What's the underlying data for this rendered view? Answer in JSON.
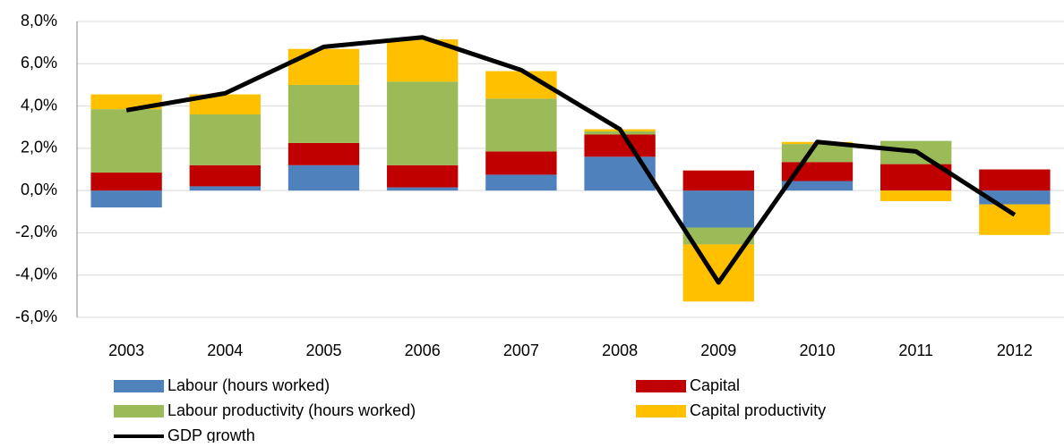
{
  "chart_data": {
    "type": "bar",
    "stacked": true,
    "grid": true,
    "legend": "bottom",
    "categories": [
      "2003",
      "2004",
      "2005",
      "2006",
      "2007",
      "2008",
      "2009",
      "2010",
      "2011",
      "2012"
    ],
    "series": [
      {
        "name": "Labour (hours worked)",
        "color": "#4f81bd",
        "values": [
          -0.8,
          0.2,
          1.2,
          0.15,
          0.75,
          1.6,
          -1.75,
          0.45,
          0,
          -0.65
        ]
      },
      {
        "name": "Capital",
        "color": "#c00000",
        "values": [
          0.85,
          1.0,
          1.05,
          1.05,
          1.1,
          1.05,
          0.95,
          0.9,
          1.25,
          1.0
        ]
      },
      {
        "name": "Labour productivity (hours worked)",
        "color": "#9bbb59",
        "values": [
          3.0,
          2.4,
          2.75,
          3.95,
          2.5,
          0.15,
          -0.8,
          0.85,
          1.1,
          0
        ]
      },
      {
        "name": "Capital productivity",
        "color": "#ffc000",
        "values": [
          0.7,
          0.95,
          1.7,
          2.0,
          1.3,
          0.1,
          -2.7,
          0.1,
          -0.5,
          -1.45
        ]
      },
      {
        "name": "GDP growth",
        "color": "#000000",
        "type": "line",
        "values": [
          3.8,
          4.6,
          6.8,
          7.25,
          5.7,
          2.9,
          -4.35,
          2.3,
          1.85,
          -1.15
        ]
      }
    ],
    "ylim": [
      -6,
      8
    ],
    "yticks": [
      {
        "value": -6,
        "label": "-6,0%"
      },
      {
        "value": -4,
        "label": "-4,0%"
      },
      {
        "value": -2,
        "label": "-2,0%"
      },
      {
        "value": 0,
        "label": "0,0%"
      },
      {
        "value": 2,
        "label": "2,0%"
      },
      {
        "value": 4,
        "label": "4,0%"
      },
      {
        "value": 6,
        "label": "6,0%"
      },
      {
        "value": 8,
        "label": "8,0%"
      }
    ]
  }
}
